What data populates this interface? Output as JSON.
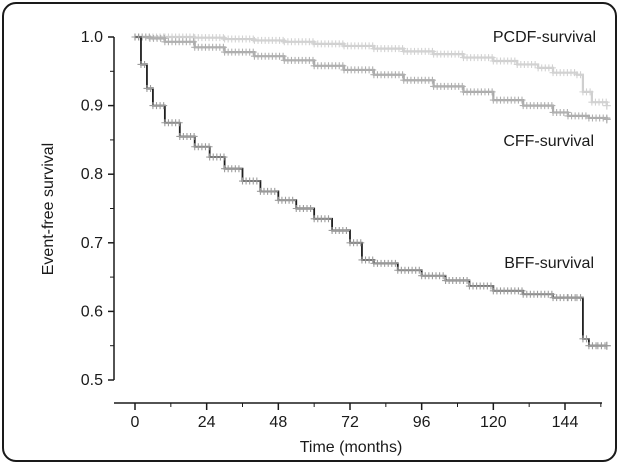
{
  "chart_data": {
    "type": "line",
    "step": true,
    "xlabel": "Time (months)",
    "ylabel": "Event-free survival",
    "xlim": [
      0,
      158
    ],
    "ylim": [
      0.5,
      1.0
    ],
    "xticks": [
      0,
      24,
      48,
      72,
      96,
      120,
      144
    ],
    "yticks": [
      0.5,
      0.6,
      0.7,
      0.8,
      0.9,
      1.0
    ],
    "xtick_labels": [
      "0",
      "24",
      "48",
      "72",
      "96",
      "120",
      "144"
    ],
    "ytick_labels": [
      "0.5",
      "0.6",
      "0.7",
      "0.8",
      "0.9",
      "1.0"
    ],
    "grid": false,
    "series": [
      {
        "name": "PCDF-survival",
        "color": "#cfcfcf",
        "censor_color": "#d2d2d2",
        "x": [
          0,
          10,
          20,
          30,
          40,
          50,
          60,
          70,
          80,
          90,
          100,
          110,
          120,
          128,
          135,
          140,
          148,
          150,
          153,
          158
        ],
        "y": [
          1.0,
          1.0,
          0.999,
          0.997,
          0.995,
          0.993,
          0.99,
          0.987,
          0.983,
          0.979,
          0.975,
          0.97,
          0.965,
          0.96,
          0.955,
          0.948,
          0.945,
          0.92,
          0.905,
          0.9
        ]
      },
      {
        "name": "CFF-survival",
        "color": "#a8a8a8",
        "censor_color": "#b0b0b0",
        "x": [
          0,
          5,
          10,
          20,
          30,
          40,
          50,
          60,
          70,
          80,
          90,
          100,
          110,
          120,
          130,
          140,
          145,
          152,
          158
        ],
        "y": [
          1.0,
          0.998,
          0.993,
          0.985,
          0.978,
          0.972,
          0.966,
          0.958,
          0.952,
          0.945,
          0.937,
          0.928,
          0.92,
          0.908,
          0.9,
          0.89,
          0.885,
          0.882,
          0.88
        ]
      },
      {
        "name": "BFF-survival",
        "color": "#1f1f1f",
        "censor_color": "#9c9c9c",
        "x": [
          0,
          2,
          4,
          6,
          10,
          15,
          20,
          25,
          30,
          36,
          42,
          48,
          54,
          60,
          66,
          72,
          76,
          80,
          88,
          96,
          104,
          112,
          120,
          130,
          140,
          145,
          148,
          150,
          152,
          155,
          158
        ],
        "y": [
          1.0,
          0.96,
          0.925,
          0.9,
          0.875,
          0.855,
          0.84,
          0.825,
          0.808,
          0.79,
          0.775,
          0.762,
          0.75,
          0.735,
          0.718,
          0.7,
          0.675,
          0.67,
          0.66,
          0.652,
          0.645,
          0.637,
          0.63,
          0.625,
          0.62,
          0.62,
          0.62,
          0.56,
          0.55,
          0.55,
          0.55
        ]
      }
    ]
  }
}
